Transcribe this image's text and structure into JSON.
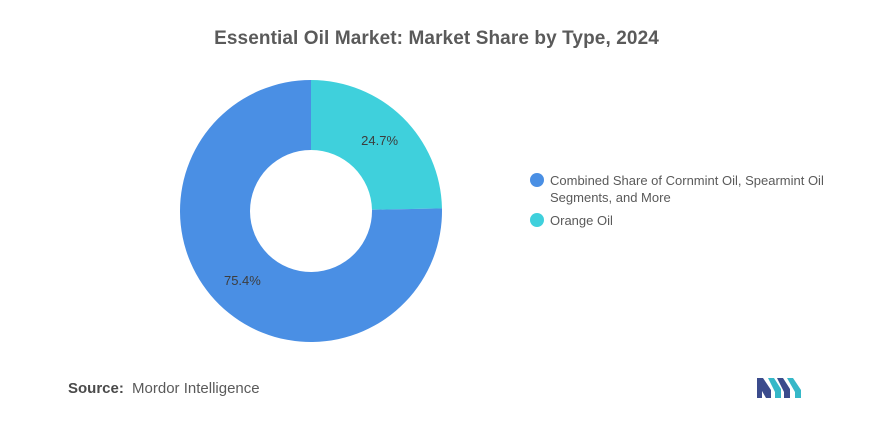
{
  "chart_data": {
    "type": "pie",
    "donut": true,
    "title": "Essential Oil Market: Market Share by Type, 2024",
    "slices": [
      {
        "name": "Orange Oil",
        "value": 24.7,
        "label": "24.7%",
        "color": "#3fd0dc"
      },
      {
        "name": "Combined Share of Cornmint Oil, Spearmint Oil Segments, and More",
        "value": 75.4,
        "label": "75.4%",
        "color": "#4a8fe4"
      }
    ],
    "legend": {
      "placement": "right",
      "entries": [
        {
          "name": "Combined Share of Cornmint Oil, Spearmint Oil Segments, and More",
          "color": "#4a8fe4"
        },
        {
          "name": "Orange Oil",
          "color": "#3fd0dc"
        }
      ]
    }
  },
  "footer": {
    "source_label": "Source:",
    "source_value": "Mordor Intelligence"
  },
  "logo": {
    "icon": "mordor-intelligence-logo-icon",
    "colors": [
      "#3b4b8c",
      "#36b8c8"
    ]
  }
}
